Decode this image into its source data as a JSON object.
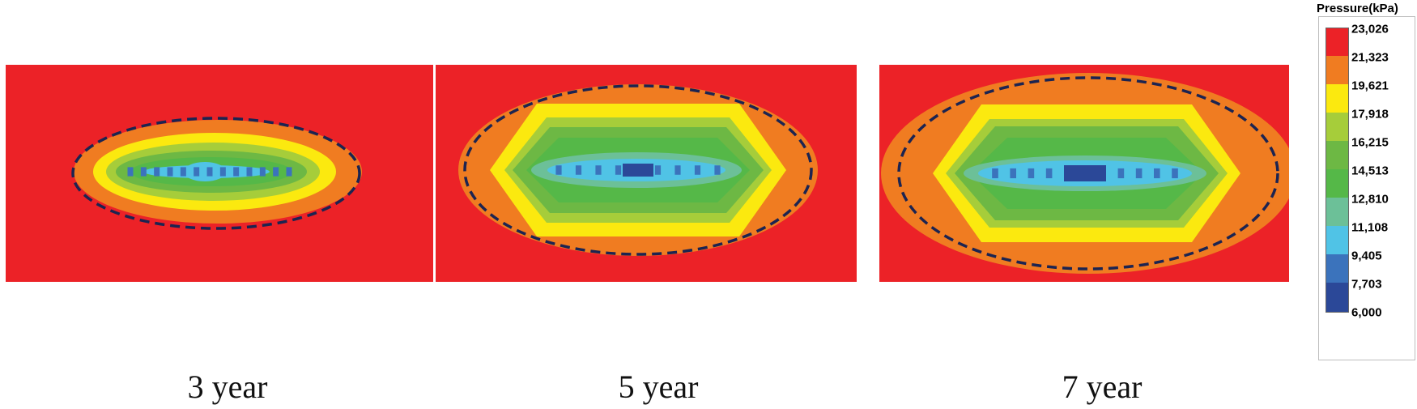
{
  "chart_data": {
    "type": "heatmap",
    "title": "",
    "panels": [
      {
        "label": "3 year",
        "years": 3
      },
      {
        "label": "5 year",
        "years": 5
      },
      {
        "label": "7 year",
        "years": 7
      }
    ],
    "colorbar": {
      "title": "Pressure(kPa)",
      "ticks": [
        "23,026",
        "21,323",
        "19,621",
        "17,918",
        "16,215",
        "14,513",
        "12,810",
        "11,108",
        "9,405",
        "7,703",
        "6,000"
      ],
      "tick_values": [
        23026,
        21323,
        19621,
        17918,
        16215,
        14513,
        12810,
        11108,
        9405,
        7703,
        6000
      ],
      "colors": [
        "#ec2227",
        "#f07c21",
        "#fbe90f",
        "#a6cd3a",
        "#6db844",
        "#55b848",
        "#6cc098",
        "#50c3e6",
        "#3b73bc",
        "#2b4898"
      ]
    },
    "background_color": "#ec2227",
    "outline_style": "dashed"
  }
}
